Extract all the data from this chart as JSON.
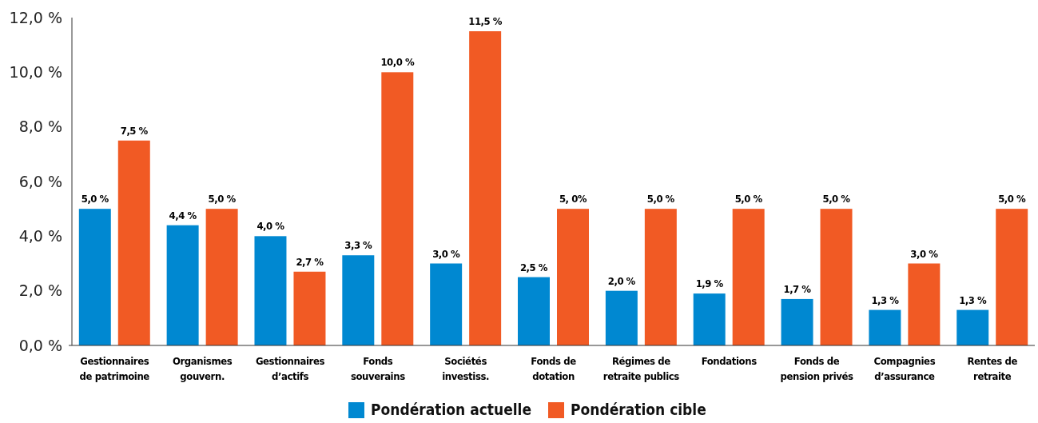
{
  "chart_data": {
    "type": "bar",
    "categories": [
      "Gestionnaires\nde patrimoine",
      "Organismes\ngouvern.",
      "Gestionnaires\nd’actifs",
      "Fonds\nsouverains",
      "Sociétés\ninvestiss.",
      "Fonds de\ndotation",
      "Régimes de\nretraite publics",
      "Fondations",
      "Fonds de\npension privés",
      "Compagnies\nd’assurance",
      "Rentes de\nretraite"
    ],
    "series": [
      {
        "name": "Pondération actuelle",
        "color": "#0088d1",
        "values": [
          5.0,
          4.4,
          4.0,
          3.3,
          3.0,
          2.5,
          2.0,
          1.9,
          1.7,
          1.3,
          1.3
        ],
        "value_labels": [
          "5,0 %",
          "4,4 %",
          "4,0 %",
          "3,3 %",
          "3,0 %",
          "2,5 %",
          "2,0 %",
          "1,9 %",
          "1,7 %",
          "1,3 %",
          "1,3 %"
        ]
      },
      {
        "name": "Pondération cible",
        "color": "#f15a24",
        "values": [
          7.5,
          5.0,
          2.7,
          10.0,
          11.5,
          5.0,
          5.0,
          5.0,
          5.0,
          3.0,
          5.0
        ],
        "value_labels": [
          "7,5 %",
          "5,0 %",
          "2,7 %",
          "10,0 %",
          "11,5 %",
          "5, 0%",
          "5,0 %",
          "5,0 %",
          "5,0 %",
          "3,0 %",
          "5,0 %"
        ]
      }
    ],
    "ylim": [
      0,
      12
    ],
    "yticks": [
      {
        "value": 0,
        "label": "0,0 %"
      },
      {
        "value": 2,
        "label": "2,0 %"
      },
      {
        "value": 4,
        "label": "4,0 %"
      },
      {
        "value": 6,
        "label": "6,0 %"
      },
      {
        "value": 8,
        "label": "8,0 %"
      },
      {
        "value": 10,
        "label": "10,0 %"
      },
      {
        "value": 12,
        "label": "12,0 %"
      }
    ],
    "grid": false,
    "legend": "bottom"
  }
}
